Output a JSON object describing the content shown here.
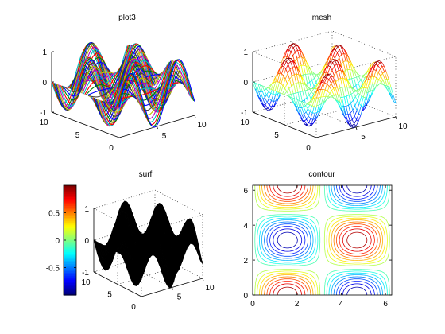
{
  "chart_data": [
    {
      "type": "line3d",
      "title": "plot3",
      "function": "z = sin(x) * cos(y)",
      "x_range": [
        0,
        10
      ],
      "y_range": [
        0,
        10
      ],
      "z_range": [
        -1,
        1
      ],
      "x_ticks": [
        "5",
        "10"
      ],
      "y_ticks": [
        "0",
        "5",
        "10"
      ],
      "z_ticks": [
        "-1",
        "0",
        "1"
      ],
      "x_tick_values": [
        5,
        10
      ],
      "y_tick_values": [
        0,
        5,
        10
      ],
      "z_tick_values": [
        -1,
        0,
        1
      ],
      "grid": false,
      "colors": [
        "#0000ff",
        "#008000",
        "#ff0000",
        "#00bfbf",
        "#bf00bf",
        "#bfbf00",
        "#404040"
      ]
    },
    {
      "type": "mesh",
      "title": "mesh",
      "function": "z = sin(x) * cos(y)",
      "x_range": [
        0,
        10
      ],
      "y_range": [
        0,
        10
      ],
      "z_range": [
        -1,
        1
      ],
      "x_ticks": [
        "5",
        "10"
      ],
      "y_ticks": [
        "0",
        "5",
        "10"
      ],
      "z_ticks": [
        "-1",
        "0",
        "1"
      ],
      "x_tick_values": [
        5,
        10
      ],
      "y_tick_values": [
        0,
        5,
        10
      ],
      "z_tick_values": [
        -1,
        0,
        1
      ],
      "grid": true,
      "colormap": "jet"
    },
    {
      "type": "surface",
      "title": "surf",
      "function": "z = sin(x) * cos(y)",
      "x_range": [
        0,
        10
      ],
      "y_range": [
        0,
        10
      ],
      "z_range": [
        -1,
        1
      ],
      "x_ticks": [
        "5",
        "10"
      ],
      "y_ticks": [
        "0",
        "5",
        "10"
      ],
      "z_ticks": [
        "-1",
        "0",
        "1"
      ],
      "x_tick_values": [
        5,
        10
      ],
      "y_tick_values": [
        0,
        5,
        10
      ],
      "z_tick_values": [
        -1,
        0,
        1
      ],
      "grid": true,
      "face_color": "#000000",
      "colorbar": {
        "range": [
          -1,
          1
        ],
        "ticks": [
          "0.5",
          "0",
          "-0.5"
        ],
        "tick_values": [
          0.5,
          0,
          -0.5
        ],
        "colormap": "jet"
      }
    },
    {
      "type": "contour",
      "title": "contour",
      "function": "z = sin(x) * cos(y)",
      "x_range": [
        0,
        6.2832
      ],
      "y_range": [
        0,
        6.2832
      ],
      "x_ticks": [
        "0",
        "2",
        "4",
        "6"
      ],
      "y_ticks": [
        "0",
        "2",
        "4",
        "6"
      ],
      "x_tick_values": [
        0,
        2,
        4,
        6
      ],
      "y_tick_values": [
        0,
        2,
        4,
        6
      ],
      "levels": [
        -0.9,
        -0.8,
        -0.7,
        -0.6,
        -0.5,
        -0.4,
        -0.3,
        -0.2,
        -0.1,
        0.1,
        0.2,
        0.3,
        0.4,
        0.5,
        0.6,
        0.7,
        0.8,
        0.9
      ],
      "colormap": "jet"
    }
  ]
}
